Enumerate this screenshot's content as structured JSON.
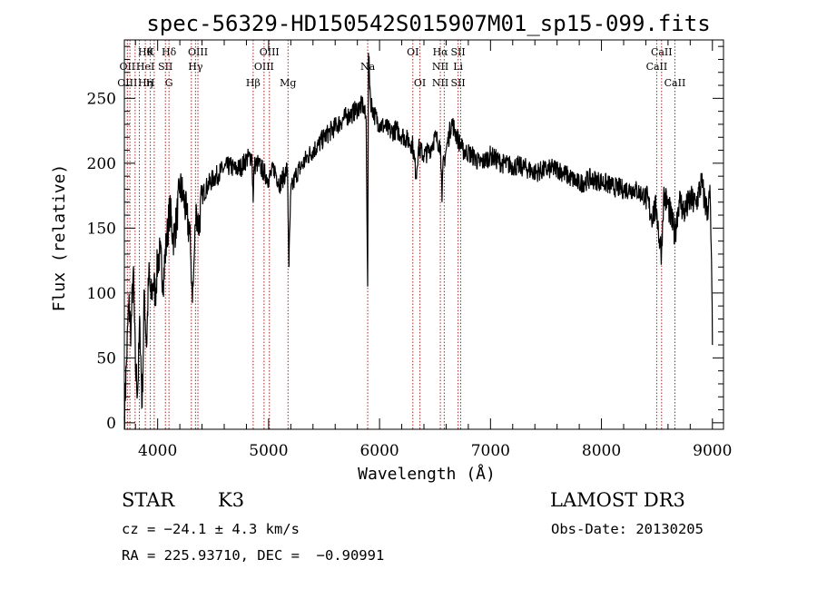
{
  "chart_data": {
    "type": "line",
    "title": "spec-56329-HD150542S015907M01_sp15-099.fits",
    "xlabel": "Wavelength (Å)",
    "ylabel": "Flux (relative)",
    "xlim": [
      3700,
      9100
    ],
    "ylim": [
      -5,
      295
    ],
    "xticks": [
      4000,
      5000,
      6000,
      7000,
      8000,
      9000
    ],
    "yticks": [
      0,
      50,
      100,
      150,
      200,
      250
    ],
    "series": [
      {
        "name": "flux",
        "x": [
          3700,
          3720,
          3740,
          3760,
          3780,
          3800,
          3820,
          3840,
          3860,
          3880,
          3900,
          3920,
          3940,
          3960,
          3980,
          4000,
          4020,
          4050,
          4080,
          4110,
          4140,
          4170,
          4200,
          4230,
          4260,
          4290,
          4300,
          4310,
          4320,
          4330,
          4340,
          4350,
          4370,
          4400,
          4450,
          4500,
          4550,
          4600,
          4650,
          4700,
          4750,
          4800,
          4850,
          4861,
          4870,
          4900,
          4950,
          5000,
          5050,
          5100,
          5150,
          5170,
          5183,
          5200,
          5250,
          5300,
          5350,
          5400,
          5450,
          5500,
          5550,
          5600,
          5650,
          5700,
          5750,
          5800,
          5850,
          5880,
          5893,
          5900,
          5920,
          5950,
          6000,
          6050,
          6100,
          6150,
          6200,
          6250,
          6300,
          6330,
          6350,
          6400,
          6450,
          6500,
          6550,
          6563,
          6570,
          6600,
          6650,
          6700,
          6750,
          6800,
          6850,
          6900,
          6950,
          7000,
          7100,
          7200,
          7300,
          7400,
          7500,
          7600,
          7700,
          7800,
          7900,
          8000,
          8100,
          8200,
          8300,
          8400,
          8450,
          8498,
          8520,
          8542,
          8560,
          8600,
          8662,
          8700,
          8750,
          8800,
          8850,
          8900,
          8950,
          8980,
          8995,
          9000
        ],
        "values": [
          5,
          48,
          92,
          70,
          118,
          42,
          25,
          78,
          12,
          102,
          58,
          115,
          95,
          108,
          100,
          125,
          130,
          110,
          140,
          165,
          142,
          155,
          182,
          175,
          160,
          145,
          125,
          102,
          105,
          128,
          152,
          165,
          150,
          175,
          183,
          188,
          192,
          196,
          198,
          195,
          197,
          203,
          206,
          170,
          198,
          200,
          194,
          188,
          196,
          184,
          192,
          196,
          120,
          178,
          192,
          198,
          205,
          210,
          214,
          220,
          224,
          228,
          232,
          236,
          238,
          242,
          245,
          232,
          105,
          285,
          248,
          238,
          230,
          228,
          224,
          226,
          222,
          218,
          214,
          190,
          212,
          206,
          210,
          220,
          214,
          170,
          196,
          210,
          232,
          220,
          210,
          208,
          205,
          200,
          202,
          206,
          200,
          198,
          197,
          193,
          195,
          196,
          190,
          184,
          188,
          186,
          182,
          180,
          180,
          174,
          160,
          165,
          142,
          132,
          175,
          168,
          145,
          172,
          162,
          172,
          168,
          185,
          163,
          175,
          102,
          60
        ]
      }
    ],
    "spectral_lines": [
      {
        "wavelength": 3727,
        "rows": [
          "",
          "OII",
          "OIII"
        ]
      },
      {
        "wavelength": 3750,
        "rows": [
          "",
          "",
          ""
        ]
      },
      {
        "wavelength": 3797,
        "rows": [
          "",
          "",
          ""
        ]
      },
      {
        "wavelength": 3835,
        "rows": [
          "",
          "",
          ""
        ]
      },
      {
        "wavelength": 3889,
        "rows": [
          "Hθ",
          "HeI",
          "Hη"
        ]
      },
      {
        "wavelength": 3934,
        "rows": [
          "K",
          "",
          "H"
        ]
      },
      {
        "wavelength": 3969,
        "rows": [
          "",
          "",
          ""
        ]
      },
      {
        "wavelength": 4070,
        "rows": [
          "",
          "SII",
          ""
        ]
      },
      {
        "wavelength": 4102,
        "rows": [
          "Hδ",
          "",
          "G"
        ]
      },
      {
        "wavelength": 4304,
        "rows": [
          "",
          "",
          ""
        ]
      },
      {
        "wavelength": 4341,
        "rows": [
          "",
          "Hγ",
          ""
        ]
      },
      {
        "wavelength": 4363,
        "rows": [
          "OIII",
          "",
          ""
        ]
      },
      {
        "wavelength": 4861,
        "rows": [
          "",
          "",
          "Hβ"
        ]
      },
      {
        "wavelength": 4959,
        "rows": [
          "",
          "OIII",
          ""
        ]
      },
      {
        "wavelength": 5007,
        "rows": [
          "OIII",
          "",
          ""
        ]
      },
      {
        "wavelength": 5175,
        "rows": [
          "",
          "",
          "Mg"
        ]
      },
      {
        "wavelength": 5893,
        "rows": [
          "",
          "Na",
          ""
        ]
      },
      {
        "wavelength": 6300,
        "rows": [
          "OI",
          "",
          ""
        ]
      },
      {
        "wavelength": 6364,
        "rows": [
          "",
          "",
          "OI"
        ]
      },
      {
        "wavelength": 6548,
        "rows": [
          "Hα",
          "NII",
          "NII"
        ]
      },
      {
        "wavelength": 6583,
        "rows": [
          "",
          "",
          ""
        ]
      },
      {
        "wavelength": 6708,
        "rows": [
          "SII",
          "Li",
          "SII"
        ]
      },
      {
        "wavelength": 6731,
        "rows": [
          "",
          "",
          ""
        ]
      },
      {
        "wavelength": 8498,
        "rows": [
          "",
          "CaII",
          ""
        ]
      },
      {
        "wavelength": 8542,
        "rows": [
          "CaII",
          "",
          ""
        ]
      },
      {
        "wavelength": 8662,
        "rows": [
          "",
          "",
          "CaII"
        ]
      }
    ]
  },
  "info": {
    "object_class": "STAR",
    "subclass": "K3",
    "survey": "LAMOST DR3",
    "cz": "cz = −24.1 ± 4.3 km/s",
    "obs_date": "Obs-Date: 20130205",
    "coords": "RA = 225.93710, DEC =  −0.90991"
  },
  "colors": {
    "line": "#000000",
    "marker": "#b22222",
    "background": "#ffffff"
  }
}
